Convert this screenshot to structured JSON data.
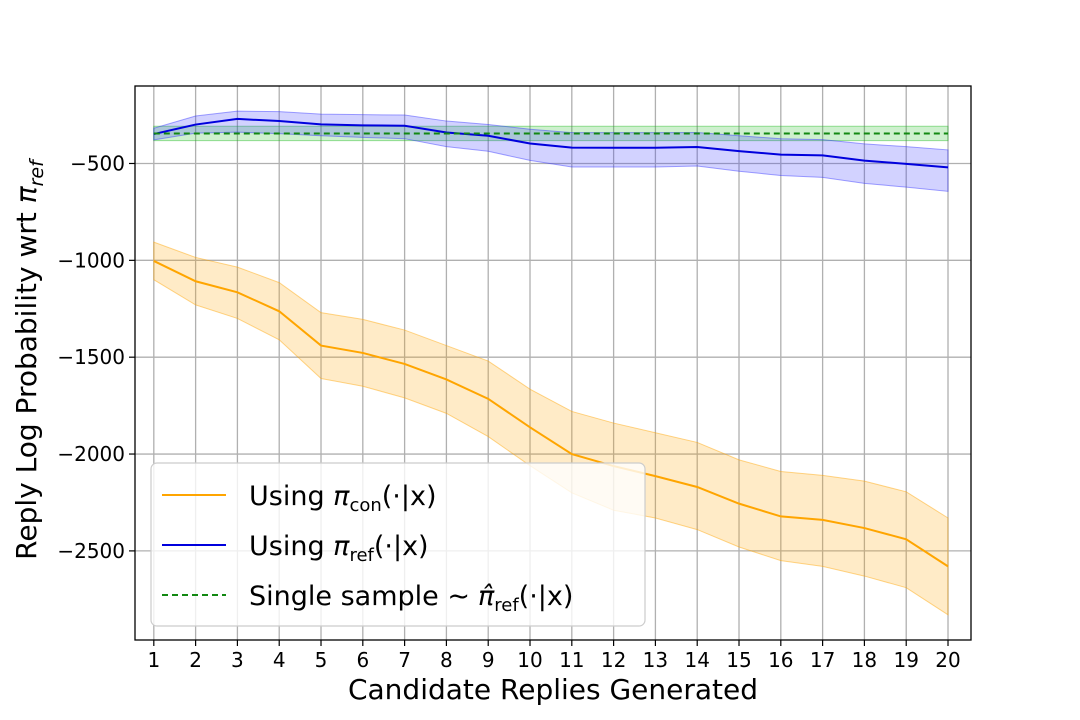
{
  "chart_data": {
    "type": "line",
    "title": "",
    "xlabel": "Candidate Replies Generated",
    "ylabel": "Reply Log Probability wrt π_ref",
    "ylabel_main": "Reply Log Probability wrt ",
    "ylabel_symbol": "π",
    "ylabel_subscript": "ref",
    "xlim": [
      0.55,
      20.55
    ],
    "ylim": [
      -2960,
      -100
    ],
    "x": [
      1,
      2,
      3,
      4,
      5,
      6,
      7,
      8,
      9,
      10,
      11,
      12,
      13,
      14,
      15,
      16,
      17,
      18,
      19,
      20
    ],
    "x_tick_labels": [
      "1",
      "2",
      "3",
      "4",
      "5",
      "6",
      "7",
      "8",
      "9",
      "10",
      "11",
      "12",
      "13",
      "14",
      "15",
      "16",
      "17",
      "18",
      "19",
      "20"
    ],
    "y_ticks": [
      -500,
      -1000,
      -1500,
      -2000,
      -2500
    ],
    "y_tick_labels": [
      "−500",
      "−1000",
      "−1500",
      "−2000",
      "−2500"
    ],
    "grid": true,
    "legend_position": "lower-left",
    "series": [
      {
        "name": "Using π_con(·|x)",
        "label_prefix": "Using ",
        "label_symbol": "π",
        "label_subscript": "con",
        "label_suffix": "(·|x)",
        "color": "#ffa500",
        "band_color": "#ffa500",
        "style": "solid",
        "values": [
          -1003,
          -1108,
          -1165,
          -1263,
          -1440,
          -1478,
          -1535,
          -1615,
          -1715,
          -1862,
          -2000,
          -2062,
          -2114,
          -2170,
          -2256,
          -2322,
          -2340,
          -2382,
          -2440,
          -2580
        ],
        "lower": [
          -1100,
          -1230,
          -1300,
          -1410,
          -1610,
          -1650,
          -1710,
          -1790,
          -1910,
          -2060,
          -2200,
          -2290,
          -2330,
          -2390,
          -2480,
          -2550,
          -2580,
          -2630,
          -2690,
          -2830
        ],
        "upper": [
          -906,
          -985,
          -1035,
          -1115,
          -1270,
          -1305,
          -1360,
          -1440,
          -1520,
          -1665,
          -1780,
          -1840,
          -1890,
          -1940,
          -2030,
          -2090,
          -2110,
          -2140,
          -2195,
          -2330
        ]
      },
      {
        "name": "Using π_ref(·|x)",
        "label_prefix": "Using ",
        "label_symbol": "π",
        "label_subscript": "ref",
        "label_suffix": "(·|x)",
        "color": "#0000dd",
        "band_color": "#3333ff",
        "style": "solid",
        "values": [
          -348,
          -299,
          -270,
          -281,
          -298,
          -303,
          -305,
          -340,
          -357,
          -397,
          -418,
          -419,
          -419,
          -415,
          -436,
          -454,
          -458,
          -485,
          -502,
          -520
        ],
        "lower": [
          -378,
          -343,
          -338,
          -346,
          -357,
          -365,
          -372,
          -413,
          -437,
          -484,
          -518,
          -518,
          -518,
          -513,
          -540,
          -562,
          -572,
          -603,
          -622,
          -644
        ],
        "upper": [
          -318,
          -255,
          -230,
          -232,
          -245,
          -248,
          -250,
          -281,
          -299,
          -323,
          -341,
          -341,
          -341,
          -340,
          -357,
          -372,
          -377,
          -399,
          -413,
          -430
        ]
      },
      {
        "name": "Single sample ∼ π̂_ref(·|x)",
        "label_prefix": "Single sample ",
        "label_tilde": "∼",
        "label_symbol": "π̂",
        "label_subscript": "ref",
        "label_suffix": "(·|x)",
        "color": "#118811",
        "band_color": "#22bb22",
        "style": "dashed",
        "values": [
          -345,
          -345,
          -345,
          -345,
          -345,
          -345,
          -345,
          -345,
          -345,
          -345,
          -345,
          -345,
          -345,
          -345,
          -345,
          -345,
          -345,
          -345,
          -345,
          -345
        ],
        "lower": [
          -382,
          -382,
          -382,
          -382,
          -382,
          -382,
          -382,
          -382,
          -382,
          -382,
          -382,
          -382,
          -382,
          -382,
          -382,
          -382,
          -382,
          -382,
          -382,
          -382
        ],
        "upper": [
          -308,
          -308,
          -308,
          -308,
          -308,
          -308,
          -308,
          -308,
          -308,
          -308,
          -308,
          -308,
          -308,
          -308,
          -308,
          -308,
          -308,
          -308,
          -308,
          -308
        ]
      }
    ]
  }
}
